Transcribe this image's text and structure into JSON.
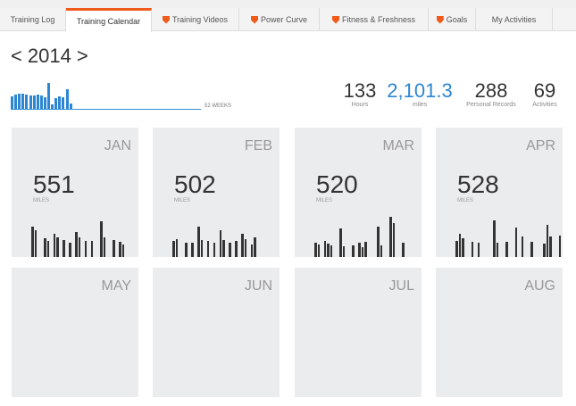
{
  "tabs": [
    {
      "label": "Training Log",
      "premium": false,
      "active": false
    },
    {
      "label": "Training Calendar",
      "premium": false,
      "active": true
    },
    {
      "label": "Training Videos",
      "premium": true,
      "active": false
    },
    {
      "label": "Power Curve",
      "premium": true,
      "active": false
    },
    {
      "label": "Fitness & Freshness",
      "premium": true,
      "active": false
    },
    {
      "label": "Goals",
      "premium": true,
      "active": false
    },
    {
      "label": "My Activities",
      "premium": false,
      "active": false
    }
  ],
  "year": {
    "prev": "<",
    "value": "2014",
    "next": ">"
  },
  "weekly": {
    "label": "52 WEEKS",
    "total_weeks": 52,
    "values": [
      14,
      16,
      17,
      17,
      16,
      15,
      15,
      16,
      15,
      13,
      29,
      5,
      12,
      14,
      13,
      22,
      6
    ],
    "color": "#2d86d2"
  },
  "stats": [
    {
      "value": "133",
      "label": "Hours",
      "color": "#333333"
    },
    {
      "value": "2,101.3",
      "label": "miles",
      "color": "#2d86d2"
    },
    {
      "value": "288",
      "label": "Personal Records",
      "color": "#333333"
    },
    {
      "value": "69",
      "label": "Activities",
      "color": "#333333"
    }
  ],
  "months": [
    {
      "name": "JAN",
      "miles": "551",
      "unit": "MILES",
      "days": [
        34,
        30,
        0,
        0,
        21,
        18,
        0,
        26,
        22,
        0,
        19,
        0,
        16,
        0,
        28,
        22,
        0,
        18,
        0,
        18,
        0,
        0,
        40,
        22,
        0,
        0,
        19,
        0,
        17,
        14,
        0
      ]
    },
    {
      "name": "FEB",
      "miles": "502",
      "unit": "MILES",
      "days": [
        18,
        20,
        0,
        0,
        16,
        0,
        16,
        0,
        34,
        19,
        0,
        18,
        0,
        16,
        0,
        30,
        19,
        0,
        16,
        0,
        18,
        0,
        26,
        20,
        0,
        14,
        22,
        0
      ]
    },
    {
      "name": "MAR",
      "miles": "520",
      "unit": "MILES",
      "days": [
        16,
        14,
        0,
        18,
        15,
        13,
        0,
        0,
        32,
        12,
        0,
        0,
        13,
        0,
        16,
        11,
        17,
        0,
        0,
        0,
        34,
        13,
        0,
        0,
        53,
        38,
        0,
        0,
        16,
        0,
        0
      ]
    },
    {
      "name": "APR",
      "miles": "528",
      "unit": "MILES",
      "days": [
        18,
        26,
        21,
        0,
        0,
        17,
        0,
        16,
        0,
        0,
        0,
        0,
        41,
        16,
        0,
        0,
        17,
        0,
        0,
        33,
        0,
        23,
        0,
        0,
        17,
        0,
        0,
        0,
        15,
        36,
        23,
        0,
        0,
        24
      ]
    },
    {
      "name": "MAY",
      "miles": "",
      "unit": "",
      "days": []
    },
    {
      "name": "JUN",
      "miles": "",
      "unit": "",
      "days": []
    },
    {
      "name": "JUL",
      "miles": "",
      "unit": "",
      "days": []
    },
    {
      "name": "AUG",
      "miles": "",
      "unit": "",
      "days": []
    }
  ]
}
